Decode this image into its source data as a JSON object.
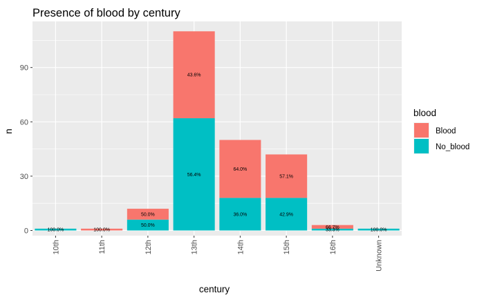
{
  "chart_data": {
    "type": "bar",
    "stacked": true,
    "title": "Presence of blood by century",
    "xlabel": "century",
    "ylabel": "n",
    "categories": [
      "10th",
      "11th",
      "12th",
      "13th",
      "14th",
      "15th",
      "16th",
      "Unknown"
    ],
    "series": [
      {
        "name": "Blood",
        "color": "#F8766D",
        "values": [
          0,
          1,
          6,
          48,
          32,
          24,
          2,
          0
        ],
        "labels": [
          "",
          "100.0%",
          "50.0%",
          "43.6%",
          "64.0%",
          "57.1%",
          "66.7%",
          ""
        ]
      },
      {
        "name": "No_blood",
        "color": "#00BFC4",
        "values": [
          1,
          0,
          6,
          62,
          18,
          18,
          1,
          1
        ],
        "labels": [
          "100.0%",
          "",
          "50.0%",
          "56.4%",
          "36.0%",
          "42.9%",
          "33.3%",
          "100.0%"
        ]
      }
    ],
    "ylim": [
      0,
      110
    ],
    "yticks": [
      0,
      30,
      60,
      90
    ],
    "grid": true,
    "legend": {
      "title": "blood",
      "position": "right"
    },
    "panel_background": "#EBEBEB",
    "grid_color": "#FFFFFF"
  }
}
